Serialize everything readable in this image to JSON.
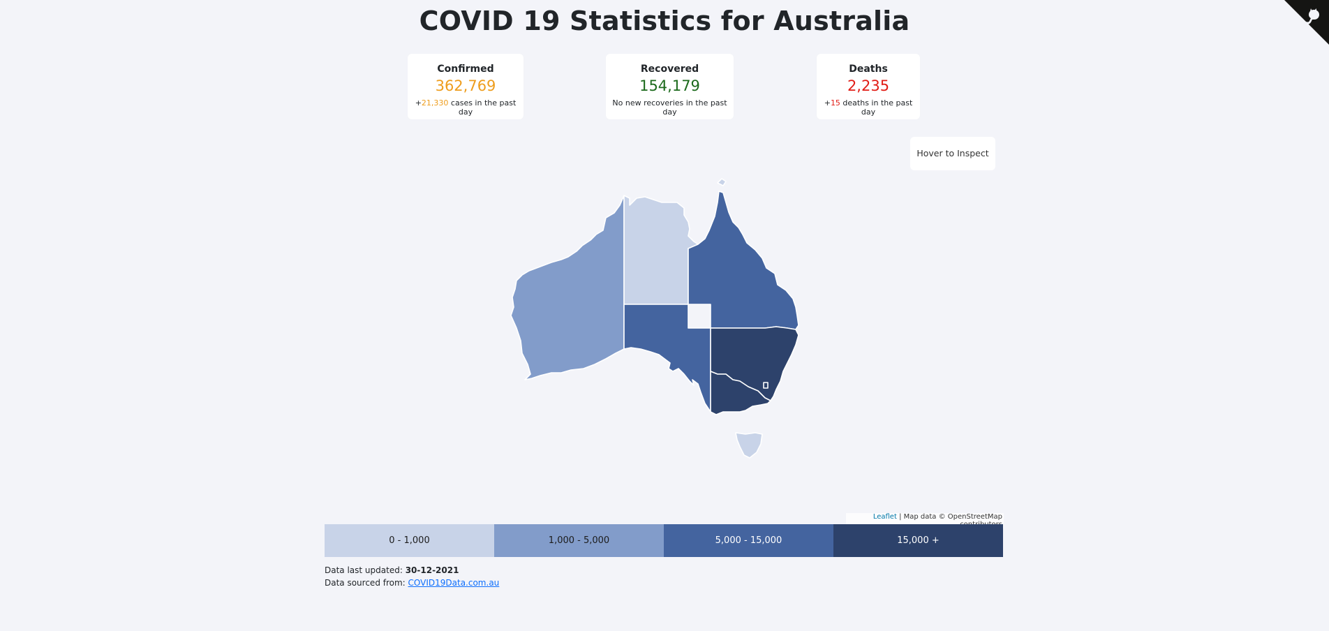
{
  "title": "COVID 19 Statistics for Australia",
  "cards": {
    "confirmed": {
      "title": "Confirmed",
      "value": "362,769",
      "delta_prefix": "+",
      "delta": "21,330",
      "delta_suffix": " cases in the past day",
      "color": "#ee9d1d"
    },
    "recovered": {
      "title": "Recovered",
      "value": "154,179",
      "sub": "No new recoveries in the past day",
      "color": "#1c6a1c"
    },
    "deaths": {
      "title": "Deaths",
      "value": "2,235",
      "delta_prefix": "+",
      "delta": "15",
      "delta_suffix": " deaths in the past day",
      "color": "#e11d16"
    }
  },
  "hover_box": "Hover to Inspect",
  "map": {
    "states": [
      {
        "name": "Western Australia",
        "bin": 1
      },
      {
        "name": "Northern Territory",
        "bin": 0
      },
      {
        "name": "Queensland",
        "bin": 2
      },
      {
        "name": "South Australia",
        "bin": 2
      },
      {
        "name": "New South Wales",
        "bin": 3
      },
      {
        "name": "Australian Capital Territory",
        "bin": 3
      },
      {
        "name": "Victoria",
        "bin": 3
      },
      {
        "name": "Tasmania",
        "bin": 0
      }
    ],
    "attribution": {
      "leaflet": "Leaflet",
      "separator": " | ",
      "rest": "Map data © OpenStreetMap contributors"
    }
  },
  "legend": [
    {
      "label": "0 - 1,000",
      "color": "#c8d3e8"
    },
    {
      "label": "1,000 - 5,000",
      "color": "#829cca"
    },
    {
      "label": "5,000 - 15,000",
      "color": "#44649f"
    },
    {
      "label": "15,000 +",
      "color": "#2d426b"
    }
  ],
  "footer": {
    "updated_label": "Data last updated: ",
    "updated_value": "30-12-2021",
    "source_label": "Data sourced from: ",
    "source_link": "COVID19Data.com.au"
  }
}
